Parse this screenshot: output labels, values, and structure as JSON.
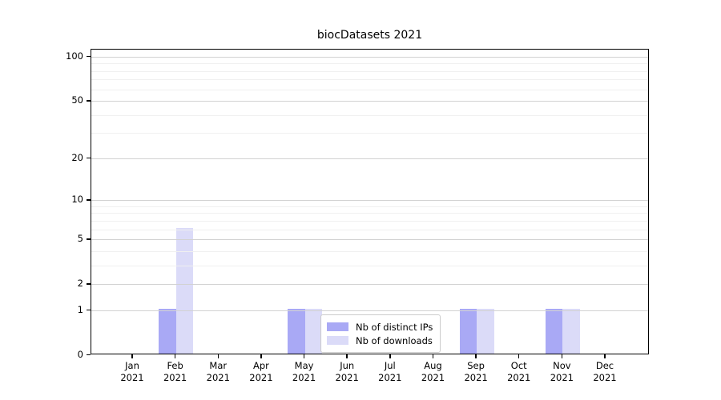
{
  "title": "biocDatasets 2021",
  "chart_data": {
    "type": "bar",
    "title": "biocDatasets 2021",
    "categories": [
      "Jan 2021",
      "Feb 2021",
      "Mar 2021",
      "Apr 2021",
      "May 2021",
      "Jun 2021",
      "Jul 2021",
      "Aug 2021",
      "Sep 2021",
      "Oct 2021",
      "Nov 2021",
      "Dec 2021"
    ],
    "months": [
      "Jan",
      "Feb",
      "Mar",
      "Apr",
      "May",
      "Jun",
      "Jul",
      "Aug",
      "Sep",
      "Oct",
      "Nov",
      "Dec"
    ],
    "year_label": "2021",
    "series": [
      {
        "name": "Nb of distinct IPs",
        "color": "#a9a9f5",
        "values": [
          0,
          1,
          0,
          0,
          1,
          0,
          0,
          0,
          1,
          0,
          1,
          0
        ]
      },
      {
        "name": "Nb of downloads",
        "color": "#dbdbf8",
        "values": [
          0,
          6,
          0,
          0,
          1,
          0,
          0,
          0,
          1,
          0,
          1,
          0
        ]
      }
    ],
    "xlabel": "",
    "ylabel": "",
    "yscale": "log1p",
    "ylim": [
      0,
      112
    ],
    "yticks_major": [
      0,
      1,
      2,
      5,
      10,
      20,
      50,
      100
    ],
    "yticks_minor": [
      3,
      4,
      6,
      7,
      8,
      9,
      30,
      40,
      60,
      70,
      80,
      90
    ],
    "grid": "horizontal",
    "legend_position": "lower center"
  },
  "legend": {
    "items": [
      {
        "label": "Nb of distinct IPs",
        "color": "#a9a9f5"
      },
      {
        "label": "Nb of downloads",
        "color": "#dbdbf8"
      }
    ]
  },
  "colors": {
    "background": "#ffffff",
    "bar_dark": "#a9a9f5",
    "bar_light": "#dbdbf8",
    "grid_major": "#d2d2d2",
    "grid_minor": "#f0f0f0",
    "axis": "#000000",
    "legend_border": "#cccccc"
  }
}
